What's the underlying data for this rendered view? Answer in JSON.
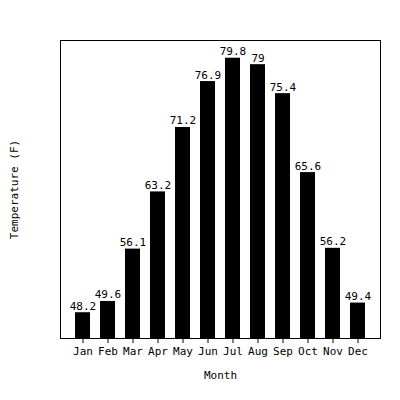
{
  "chart_data": {
    "type": "bar",
    "categories": [
      "Jan",
      "Feb",
      "Mar",
      "Apr",
      "May",
      "Jun",
      "Jul",
      "Aug",
      "Sep",
      "Oct",
      "Nov",
      "Dec"
    ],
    "values": [
      48.2,
      49.6,
      56.1,
      63.2,
      71.2,
      76.9,
      79.8,
      79.0,
      75.4,
      65.6,
      56.2,
      49.4
    ],
    "color": "#000000",
    "xlabel": "Month",
    "ylabel": "Temperature (F)",
    "ylim": [
      45,
      82
    ],
    "yticks": [],
    "grid": false,
    "tick_labels": "x",
    "data_labels": true
  }
}
